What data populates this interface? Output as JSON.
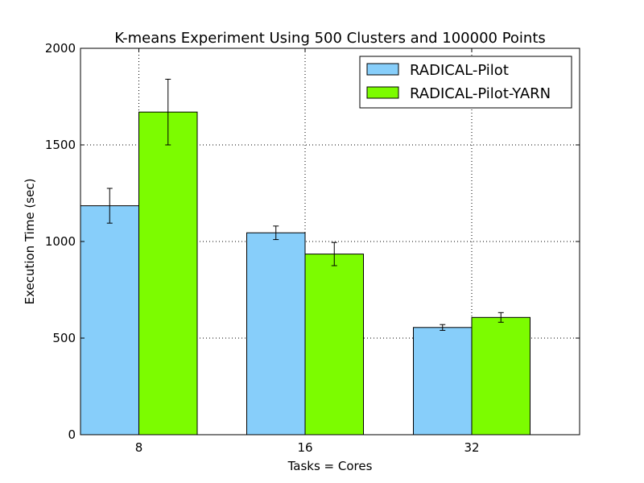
{
  "chart_data": {
    "type": "bar",
    "title": "K-means Experiment Using 500 Clusters and 100000 Points",
    "xlabel": "Tasks = Cores",
    "ylabel": "Execution Time (sec)",
    "categories": [
      "8",
      "16",
      "32"
    ],
    "ylim": [
      0,
      2000
    ],
    "yticks": [
      "0",
      "500",
      "1000",
      "1500",
      "2000"
    ],
    "grid": true,
    "legend_position": "top-right",
    "series": [
      {
        "name": "RADICAL-Pilot",
        "color": "#87cefa",
        "values": [
          1185,
          1045,
          555
        ],
        "errors": [
          90,
          35,
          15
        ]
      },
      {
        "name": "RADICAL-Pilot-YARN",
        "color": "#7cfc00",
        "values": [
          1670,
          935,
          607
        ],
        "errors": [
          170,
          60,
          25
        ]
      }
    ]
  }
}
